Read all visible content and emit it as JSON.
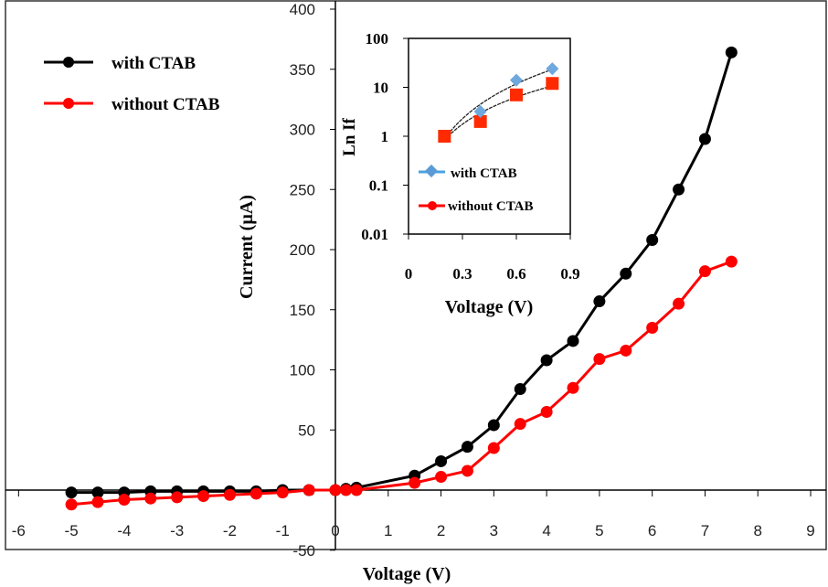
{
  "chart_data": [
    {
      "type": "line",
      "xlabel": "Voltage (V)",
      "ylabel": "Current (µA)",
      "xlim": [
        -6,
        9
      ],
      "ylim": [
        -50,
        400
      ],
      "xticks": [
        "-6",
        "-5",
        "-4",
        "-3",
        "-2",
        "-1",
        "0",
        "1",
        "2",
        "3",
        "4",
        "5",
        "6",
        "7",
        "8",
        "9"
      ],
      "yticks": [
        "-50",
        "0",
        "50",
        "100",
        "150",
        "200",
        "250",
        "300",
        "350",
        "400"
      ],
      "grid": false,
      "legend_position": "top-left",
      "x": [
        -5,
        -4.5,
        -4,
        -3.5,
        -3,
        -2.5,
        -2,
        -1.5,
        -1,
        -0.5,
        0,
        0.2,
        0.4,
        1.5,
        2,
        2.5,
        3,
        3.5,
        4,
        4.5,
        5,
        5.5,
        6,
        6.5,
        7,
        7.5
      ],
      "series": [
        {
          "name": "with CTAB",
          "color": "#000000",
          "values": [
            -2,
            -2,
            -2,
            -1,
            -1,
            -1,
            -1,
            -1,
            0,
            0,
            0,
            1,
            2,
            12,
            24,
            36,
            54,
            84,
            108,
            124,
            157,
            180,
            208,
            250,
            292,
            364
          ]
        },
        {
          "name": "without CTAB",
          "color": "#ff0000",
          "values": [
            -12,
            -10,
            -8,
            -7,
            -6,
            -5,
            -4,
            -3,
            -2,
            0,
            0,
            0,
            0,
            6,
            11,
            16,
            35,
            55,
            65,
            85,
            109,
            116,
            135,
            155,
            182,
            190
          ]
        }
      ]
    },
    {
      "type": "scatter",
      "xlabel": "Voltage (V)",
      "ylabel": "Ln If",
      "xlim": [
        0,
        0.9
      ],
      "ylim": [
        0.01,
        100
      ],
      "yscale": "log",
      "xticks": [
        "0",
        "0.3",
        "0.6",
        "0.9"
      ],
      "yticks": [
        "0.01",
        "0.1",
        "1",
        "10",
        "100"
      ],
      "legend_position": "bottom-left",
      "trendlines": true,
      "series": [
        {
          "name": "with CTAB",
          "color": "#4aa3df",
          "marker": "diamond",
          "x": [
            0.2,
            0.4,
            0.6,
            0.8
          ],
          "values": [
            1,
            3.2,
            14,
            24
          ]
        },
        {
          "name": "without CTAB",
          "color": "#ff2a00",
          "marker": "square",
          "x": [
            0.2,
            0.4,
            0.6,
            0.8
          ],
          "values": [
            1,
            2,
            7,
            12
          ]
        }
      ]
    }
  ]
}
